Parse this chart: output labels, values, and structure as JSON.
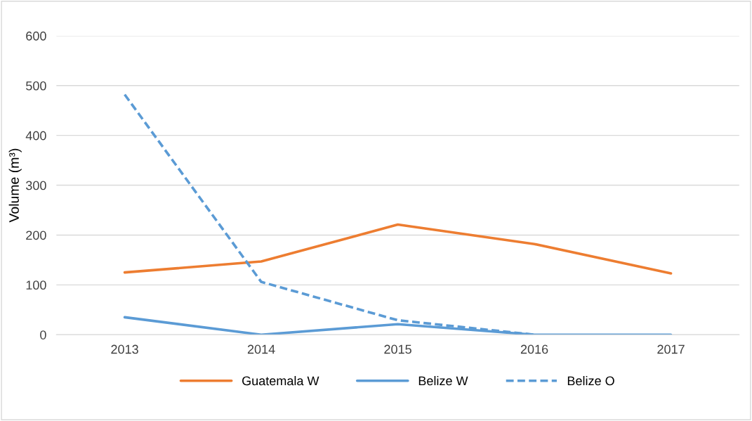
{
  "chart_data": {
    "type": "line",
    "ylabel": "Volume (m³)",
    "categories": [
      "2013",
      "2014",
      "2015",
      "2016",
      "2017"
    ],
    "series": [
      {
        "name": "Guatemala W",
        "color": "#ed7d31",
        "values": [
          125,
          147,
          221,
          182,
          123
        ],
        "line_style": "solid"
      },
      {
        "name": "Belize W",
        "color": "#5b9bd5",
        "values": [
          35,
          0,
          21,
          0,
          0
        ],
        "line_style": "solid"
      },
      {
        "name": "Belize O",
        "color": "#5b9bd5",
        "values": [
          482,
          106,
          29,
          0,
          null
        ],
        "line_style": "dashed"
      }
    ],
    "ylim": [
      0,
      600
    ],
    "yticks": [
      0,
      100,
      200,
      300,
      400,
      500,
      600
    ],
    "grid": "y",
    "legend": "bottom",
    "marker": "none"
  }
}
